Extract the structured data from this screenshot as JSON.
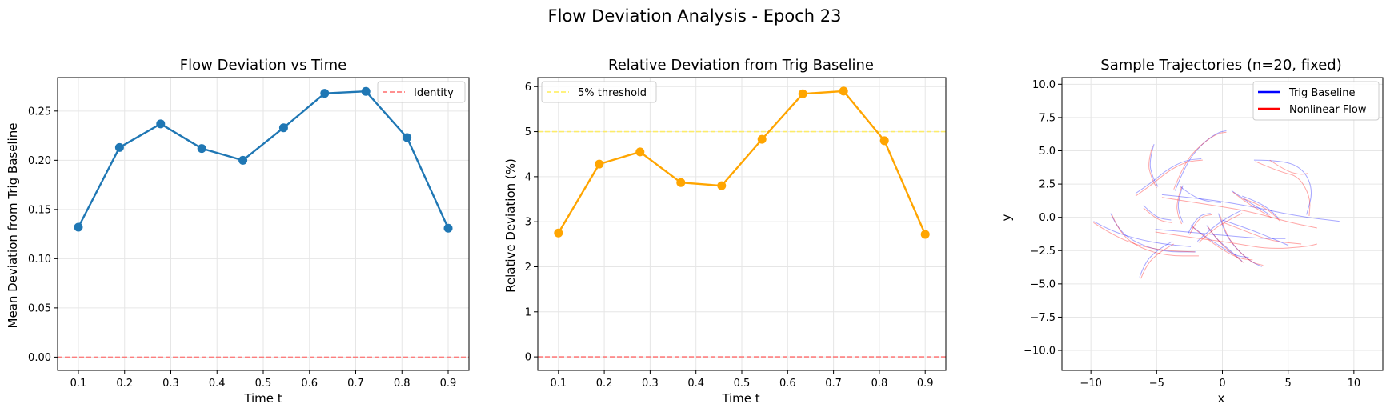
{
  "figure": {
    "title": "Flow Deviation Analysis - Epoch 23"
  },
  "chart_data": [
    {
      "type": "line",
      "title": "Flow Deviation vs Time",
      "xlabel": "Time t",
      "ylabel": "Mean Deviation from Trig Baseline",
      "xlim": [
        0.055,
        0.945
      ],
      "ylim": [
        -0.0135,
        0.284
      ],
      "xticks": [
        0.1,
        0.2,
        0.3,
        0.4,
        0.5,
        0.6,
        0.7,
        0.8,
        0.9
      ],
      "xtick_labels": [
        "0.1",
        "0.2",
        "0.3",
        "0.4",
        "0.5",
        "0.6",
        "0.7",
        "0.8",
        "0.9"
      ],
      "yticks": [
        0.0,
        0.05,
        0.1,
        0.15,
        0.2,
        0.25
      ],
      "ytick_labels": [
        "0.00",
        "0.05",
        "0.10",
        "0.15",
        "0.20",
        "0.25"
      ],
      "grid": true,
      "legend_position": "top-right",
      "x": [
        0.1,
        0.189,
        0.278,
        0.367,
        0.456,
        0.544,
        0.633,
        0.722,
        0.811,
        0.9
      ],
      "series": [
        {
          "values": [
            0.132,
            0.213,
            0.237,
            0.212,
            0.2,
            0.233,
            0.268,
            0.27,
            0.223,
            0.131
          ],
          "color": "#1f77b4",
          "style": "line-marker"
        }
      ],
      "reference_lines": [
        {
          "name": "Identity",
          "y": 0.0,
          "color": "#ff6b6b",
          "style": "dashed"
        }
      ],
      "legend": [
        "Identity"
      ]
    },
    {
      "type": "line",
      "title": "Relative Deviation from Trig Baseline",
      "xlabel": "Time t",
      "ylabel": "Relative Deviation (%)",
      "xlim": [
        0.055,
        0.945
      ],
      "ylim": [
        -0.3,
        6.2
      ],
      "xticks": [
        0.1,
        0.2,
        0.3,
        0.4,
        0.5,
        0.6,
        0.7,
        0.8,
        0.9
      ],
      "xtick_labels": [
        "0.1",
        "0.2",
        "0.3",
        "0.4",
        "0.5",
        "0.6",
        "0.7",
        "0.8",
        "0.9"
      ],
      "yticks": [
        0,
        1,
        2,
        3,
        4,
        5,
        6
      ],
      "ytick_labels": [
        "0",
        "1",
        "2",
        "3",
        "4",
        "5",
        "6"
      ],
      "grid": true,
      "legend_position": "top-left",
      "x": [
        0.1,
        0.189,
        0.278,
        0.367,
        0.456,
        0.544,
        0.633,
        0.722,
        0.811,
        0.9
      ],
      "series": [
        {
          "values": [
            2.75,
            4.28,
            4.55,
            3.87,
            3.8,
            4.83,
            5.84,
            5.9,
            4.8,
            2.72
          ],
          "color": "#ffa500",
          "style": "line-marker"
        }
      ],
      "reference_lines": [
        {
          "name": "5% threshold",
          "y": 5.0,
          "color": "#ffee55",
          "style": "dashed"
        },
        {
          "y": 0.0,
          "color": "#ff6b6b",
          "style": "dashed"
        }
      ],
      "legend": [
        "5% threshold"
      ]
    },
    {
      "type": "line",
      "title": "Sample Trajectories (n=20, fixed)",
      "xlabel": "x",
      "ylabel": "y",
      "xlim": [
        -12.2,
        12.2
      ],
      "ylim": [
        -11.5,
        10.5
      ],
      "xticks": [
        -10,
        -5,
        0,
        5,
        10
      ],
      "xtick_labels": [
        "−10",
        "−5",
        "0",
        "5",
        "10"
      ],
      "yticks": [
        -10,
        -7.5,
        -5,
        -2.5,
        0,
        2.5,
        5,
        7.5,
        10
      ],
      "ytick_labels": [
        "−10.0",
        "−7.5",
        "−5.0",
        "−2.5",
        "0.0",
        "2.5",
        "5.0",
        "7.5",
        "10.0"
      ],
      "grid": true,
      "legend_position": "top-right",
      "legend": [
        "Trig Baseline",
        "Nonlinear Flow"
      ],
      "series": [
        {
          "name": "Trig Baseline",
          "color": "#0000ff",
          "paths": [
            [
              [
                -5.2,
                5.5
              ],
              [
                -5.6,
                4.2
              ],
              [
                -5.3,
                3.0
              ],
              [
                -4.9,
                2.3
              ]
            ],
            [
              [
                -3.6,
                2.0
              ],
              [
                -2.8,
                4.0
              ],
              [
                -1.5,
                5.6
              ],
              [
                -0.3,
                6.4
              ],
              [
                0.3,
                6.5
              ]
            ],
            [
              [
                2.4,
                4.3
              ],
              [
                4.6,
                4.3
              ],
              [
                6.2,
                3.6
              ],
              [
                6.9,
                2.0
              ],
              [
                6.4,
                0.2
              ]
            ],
            [
              [
                -6.6,
                1.8
              ],
              [
                -5.4,
                2.6
              ],
              [
                -4.2,
                3.6
              ],
              [
                -2.8,
                4.3
              ],
              [
                -1.6,
                4.4
              ]
            ],
            [
              [
                -4.6,
                1.7
              ],
              [
                -1.5,
                1.4
              ],
              [
                1.8,
                0.9
              ],
              [
                5.6,
                0.1
              ],
              [
                8.9,
                -0.3
              ]
            ],
            [
              [
                -9.8,
                -0.3
              ],
              [
                -8.5,
                -1.0
              ],
              [
                -6.6,
                -1.6
              ],
              [
                -4.6,
                -2.0
              ],
              [
                -2.4,
                -2.2
              ]
            ],
            [
              [
                -5.1,
                -0.9
              ],
              [
                -2.6,
                -1.1
              ],
              [
                0.5,
                -1.4
              ],
              [
                3.2,
                -1.6
              ],
              [
                4.8,
                -1.6
              ]
            ],
            [
              [
                -8.5,
                0.3
              ],
              [
                -7.9,
                -1.0
              ],
              [
                -6.4,
                -2.0
              ],
              [
                -4.4,
                -2.6
              ],
              [
                -2.0,
                -2.6
              ]
            ],
            [
              [
                -6.3,
                -4.5
              ],
              [
                -5.9,
                -3.4
              ],
              [
                -5.0,
                -2.5
              ],
              [
                -3.8,
                -1.8
              ]
            ],
            [
              [
                -1.2,
                -0.6
              ],
              [
                -0.5,
                -1.6
              ],
              [
                0.5,
                -2.4
              ],
              [
                1.5,
                -3.3
              ]
            ],
            [
              [
                -2.6,
                -1.2
              ],
              [
                -2.2,
                -0.4
              ],
              [
                -1.6,
                0.2
              ],
              [
                -0.9,
                0.3
              ]
            ],
            [
              [
                -0.3,
                0.3
              ],
              [
                0.1,
                -1.0
              ],
              [
                0.9,
                -2.2
              ],
              [
                2.1,
                -3.3
              ],
              [
                3.0,
                -3.7
              ]
            ],
            [
              [
                0.7,
                2.0
              ],
              [
                1.6,
                1.4
              ],
              [
                2.6,
                0.8
              ],
              [
                3.6,
                0.2
              ]
            ],
            [
              [
                -6.0,
                0.9
              ],
              [
                -5.4,
                0.3
              ],
              [
                -4.7,
                -0.1
              ],
              [
                -3.9,
                -0.2
              ]
            ],
            [
              [
                -3.0,
                2.4
              ],
              [
                -3.4,
                1.2
              ],
              [
                -3.3,
                0.3
              ],
              [
                -3.0,
                -0.4
              ]
            ],
            [
              [
                -2.4,
                -0.6
              ],
              [
                -1.4,
                -1.4
              ],
              [
                -0.1,
                -2.2
              ],
              [
                1.0,
                -2.9
              ],
              [
                2.0,
                -3.0
              ]
            ],
            [
              [
                -1.9,
                -1.8
              ],
              [
                -0.8,
                -0.8
              ],
              [
                0.4,
                0.0
              ],
              [
                1.4,
                0.5
              ]
            ],
            [
              [
                1.5,
                1.6
              ],
              [
                2.6,
                1.2
              ],
              [
                3.6,
                0.6
              ],
              [
                4.3,
                -0.1
              ]
            ],
            [
              [
                0.0,
                -0.2
              ],
              [
                1.8,
                -0.8
              ],
              [
                3.6,
                -1.5
              ],
              [
                5.0,
                -2.1
              ]
            ],
            [
              [
                -3.2,
                2.3
              ],
              [
                -2.3,
                1.6
              ],
              [
                -1.2,
                1.2
              ],
              [
                -0.1,
                1.1
              ]
            ]
          ]
        },
        {
          "name": "Nonlinear Flow",
          "color": "#ff0000",
          "paths": [
            [
              [
                -5.3,
                5.4
              ],
              [
                -5.7,
                4.1
              ],
              [
                -5.4,
                3.0
              ],
              [
                -5.0,
                2.2
              ]
            ],
            [
              [
                -3.7,
                2.1
              ],
              [
                -2.9,
                4.1
              ],
              [
                -1.6,
                5.5
              ],
              [
                -0.4,
                6.3
              ],
              [
                0.3,
                6.4
              ]
            ],
            [
              [
                2.5,
                4.2
              ],
              [
                4.4,
                3.4
              ],
              [
                5.8,
                3.1
              ],
              [
                6.7,
                1.5
              ],
              [
                6.6,
                0.1
              ]
            ],
            [
              [
                -6.6,
                1.6
              ],
              [
                -5.3,
                2.5
              ],
              [
                -4.1,
                3.5
              ],
              [
                -2.7,
                4.2
              ],
              [
                -1.5,
                4.3
              ]
            ],
            [
              [
                -4.6,
                1.5
              ],
              [
                -1.4,
                1.0
              ],
              [
                1.9,
                0.5
              ],
              [
                5.2,
                -0.4
              ],
              [
                7.2,
                -0.8
              ]
            ],
            [
              [
                -9.8,
                -0.4
              ],
              [
                -8.4,
                -1.3
              ],
              [
                -6.5,
                -2.1
              ],
              [
                -4.4,
                -2.5
              ],
              [
                -2.1,
                -2.6
              ]
            ],
            [
              [
                -5.1,
                -1.1
              ],
              [
                -2.5,
                -1.5
              ],
              [
                0.7,
                -1.9
              ],
              [
                3.6,
                -2.4
              ],
              [
                6.4,
                -2.2
              ],
              [
                7.2,
                -2.0
              ]
            ],
            [
              [
                -8.4,
                0.2
              ],
              [
                -7.8,
                -1.2
              ],
              [
                -6.3,
                -2.3
              ],
              [
                -4.2,
                -2.9
              ],
              [
                -1.8,
                -2.9
              ]
            ],
            [
              [
                -6.2,
                -4.6
              ],
              [
                -5.8,
                -3.6
              ],
              [
                -4.9,
                -2.7
              ],
              [
                -3.7,
                -2.0
              ]
            ],
            [
              [
                -1.1,
                -0.7
              ],
              [
                -0.4,
                -1.7
              ],
              [
                0.6,
                -2.6
              ],
              [
                1.6,
                -3.4
              ]
            ],
            [
              [
                -2.5,
                -1.3
              ],
              [
                -2.1,
                -0.5
              ],
              [
                -1.5,
                0.1
              ],
              [
                -0.8,
                0.2
              ]
            ],
            [
              [
                -0.2,
                0.2
              ],
              [
                0.2,
                -1.1
              ],
              [
                1.0,
                -2.3
              ],
              [
                2.2,
                -3.4
              ],
              [
                3.1,
                -3.6
              ]
            ],
            [
              [
                0.8,
                1.9
              ],
              [
                1.7,
                1.2
              ],
              [
                2.7,
                0.6
              ],
              [
                3.7,
                0.0
              ]
            ],
            [
              [
                -6.0,
                0.7
              ],
              [
                -5.3,
                0.1
              ],
              [
                -4.6,
                -0.3
              ],
              [
                -3.8,
                -0.4
              ]
            ],
            [
              [
                -3.1,
                2.3
              ],
              [
                -3.5,
                1.1
              ],
              [
                -3.4,
                0.2
              ],
              [
                -3.1,
                -0.5
              ]
            ],
            [
              [
                -2.3,
                -0.7
              ],
              [
                -1.2,
                -1.6
              ],
              [
                0.1,
                -2.5
              ],
              [
                1.3,
                -3.1
              ],
              [
                2.3,
                -3.2
              ]
            ],
            [
              [
                -1.8,
                -1.9
              ],
              [
                -0.7,
                -0.9
              ],
              [
                0.5,
                -0.2
              ],
              [
                1.5,
                0.3
              ]
            ],
            [
              [
                1.6,
                1.4
              ],
              [
                2.7,
                1.0
              ],
              [
                3.7,
                0.4
              ],
              [
                4.4,
                -0.3
              ]
            ],
            [
              [
                0.1,
                -0.4
              ],
              [
                1.9,
                -1.1
              ],
              [
                3.8,
                -1.8
              ],
              [
                6.0,
                -2.0
              ]
            ],
            [
              [
                3.6,
                4.3
              ],
              [
                4.8,
                3.5
              ],
              [
                5.9,
                3.2
              ],
              [
                6.5,
                3.3
              ]
            ]
          ]
        }
      ]
    }
  ]
}
